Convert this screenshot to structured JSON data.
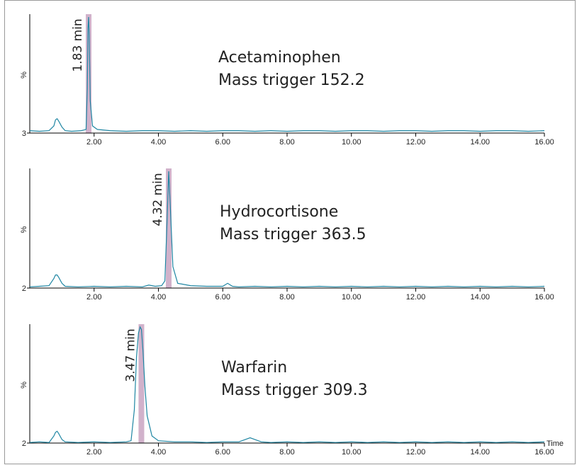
{
  "chart_data": [
    {
      "type": "line",
      "ylabel": "%",
      "xlim": [
        0,
        16
      ],
      "ylim": [
        3,
        100
      ],
      "yticks": [
        3
      ],
      "xticks": [
        {
          "value": 2,
          "label": "2.00"
        },
        {
          "value": 4,
          "label": "4.00"
        },
        {
          "value": 6,
          "label": "6.00"
        },
        {
          "value": 8,
          "label": "8.00"
        },
        {
          "value": 10,
          "label": "10.00"
        },
        {
          "value": 12,
          "label": "12.00"
        },
        {
          "value": 14,
          "label": "14.00"
        },
        {
          "value": 16,
          "label": "16.00"
        }
      ],
      "annotation": [
        "Acetaminophen",
        "Mass trigger 152.2"
      ],
      "peak": {
        "x": 1.83,
        "label": "1.83 min",
        "color": "#c9a4c2"
      },
      "x": [
        0,
        0.3,
        0.6,
        0.75,
        0.8,
        0.85,
        0.9,
        1.0,
        1.1,
        1.3,
        1.6,
        1.75,
        1.79,
        1.81,
        1.83,
        1.85,
        1.88,
        1.95,
        2.1,
        2.5,
        3,
        3.5,
        4,
        4.5,
        5,
        5.5,
        6,
        6.5,
        7,
        7.5,
        8,
        8.5,
        9,
        9.5,
        10,
        10.5,
        11,
        11.5,
        12,
        12.5,
        13,
        13.5,
        14,
        14.5,
        15,
        15.5,
        16
      ],
      "series": [
        {
          "color": "#1f86a3",
          "values": [
            5,
            4.5,
            5,
            9,
            14,
            15,
            13,
            8,
            5,
            4.5,
            5,
            6,
            40,
            90,
            100,
            85,
            30,
            9,
            6,
            5,
            4.5,
            5,
            5,
            4.5,
            5,
            4.5,
            5,
            5,
            4.5,
            5,
            4.5,
            5,
            5,
            4.5,
            5,
            5,
            4.5,
            5,
            5,
            4.5,
            5,
            5,
            4.5,
            5,
            5,
            4.5,
            5
          ]
        }
      ]
    },
    {
      "type": "line",
      "ylabel": "%",
      "xlim": [
        0,
        16
      ],
      "ylim": [
        2,
        100
      ],
      "yticks": [
        2
      ],
      "xticks": [
        {
          "value": 2,
          "label": "2.00"
        },
        {
          "value": 4,
          "label": "4.00"
        },
        {
          "value": 6,
          "label": "6.00"
        },
        {
          "value": 8,
          "label": "8.00"
        },
        {
          "value": 10,
          "label": "10.00"
        },
        {
          "value": 12,
          "label": "12.00"
        },
        {
          "value": 14,
          "label": "14.00"
        },
        {
          "value": 16,
          "label": "16.00"
        }
      ],
      "annotation": [
        "Hydrocortisone",
        "Mass trigger 363.5"
      ],
      "peak": {
        "x": 4.32,
        "label": "4.32 min",
        "color": "#c9a4c2"
      },
      "x": [
        0,
        0.3,
        0.6,
        0.75,
        0.8,
        0.85,
        0.9,
        1.0,
        1.1,
        1.5,
        2,
        2.5,
        3,
        3.5,
        3.7,
        3.9,
        4.1,
        4.2,
        4.27,
        4.32,
        4.37,
        4.45,
        4.6,
        5,
        5.5,
        6,
        6.15,
        6.3,
        6.5,
        7,
        7.5,
        8,
        8.5,
        9,
        9.5,
        10,
        10.5,
        11,
        11.5,
        12,
        12.5,
        13,
        13.5,
        14,
        14.5,
        15,
        15.5,
        16
      ],
      "series": [
        {
          "color": "#1f86a3",
          "values": [
            3,
            3.5,
            4,
            10,
            13,
            13,
            11,
            6,
            3.5,
            3,
            3.5,
            3,
            3.5,
            3,
            4.5,
            3.5,
            4,
            8,
            60,
            100,
            70,
            20,
            6,
            4,
            3.5,
            3.5,
            6,
            3.5,
            3,
            3.5,
            3,
            3.5,
            3,
            3.5,
            3,
            3.5,
            3,
            3.5,
            3,
            3.5,
            3,
            3.5,
            3,
            3.5,
            3,
            3.5,
            3,
            3.5
          ]
        }
      ]
    },
    {
      "type": "line",
      "ylabel": "%",
      "xlabel": "Time",
      "xlim": [
        0,
        16
      ],
      "ylim": [
        2,
        100
      ],
      "yticks": [
        2
      ],
      "xticks": [
        {
          "value": 2,
          "label": "2.00"
        },
        {
          "value": 4,
          "label": "4.00"
        },
        {
          "value": 6,
          "label": "6.00"
        },
        {
          "value": 8,
          "label": "8.00"
        },
        {
          "value": 10,
          "label": "10.00"
        },
        {
          "value": 12,
          "label": "12.00"
        },
        {
          "value": 14,
          "label": "14.00"
        },
        {
          "value": 16,
          "label": "16.00"
        }
      ],
      "annotation": [
        "Warfarin",
        "Mass trigger 309.3"
      ],
      "peak": {
        "x": 3.47,
        "label": "3.47 min",
        "color": "#c9a4c2"
      },
      "x": [
        0,
        0.3,
        0.6,
        0.75,
        0.8,
        0.85,
        0.9,
        1.0,
        1.1,
        1.5,
        2,
        2.5,
        3,
        3.15,
        3.25,
        3.32,
        3.38,
        3.43,
        3.47,
        3.52,
        3.58,
        3.65,
        3.8,
        4,
        4.5,
        5,
        5.5,
        6,
        6.5,
        6.85,
        7.2,
        7.5,
        8,
        8.5,
        9,
        9.5,
        10,
        10.5,
        11,
        11.5,
        12,
        12.5,
        13,
        13.5,
        14,
        14.5,
        15,
        15.5,
        16
      ],
      "series": [
        {
          "color": "#1f86a3",
          "values": [
            2.5,
            3,
            2.5,
            8,
            11,
            12,
            10,
            5,
            3,
            2.5,
            3,
            2.5,
            3,
            4,
            30,
            75,
            95,
            100,
            98,
            80,
            50,
            25,
            8,
            4,
            3,
            3,
            2.5,
            3,
            3,
            6.5,
            3,
            2.5,
            3,
            2.5,
            3,
            2.5,
            3,
            2.5,
            3,
            2.5,
            3,
            2.5,
            3,
            2.5,
            3,
            2.5,
            3,
            2.5,
            3
          ]
        }
      ]
    }
  ]
}
